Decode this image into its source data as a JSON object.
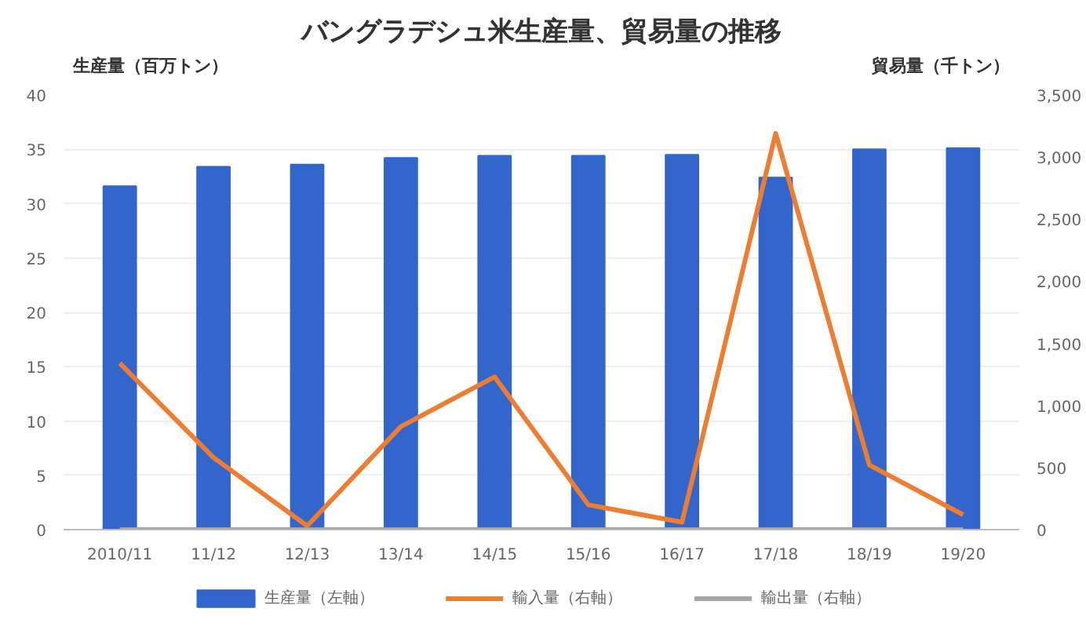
{
  "chart_data": {
    "type": "bar",
    "title": "バングラデシュ米生産量、貿易量の推移",
    "ylabel": "生産量（百万トン）",
    "y2label": "貿易量（千トン）",
    "categories": [
      "2010/11",
      "11/12",
      "12/13",
      "13/14",
      "14/15",
      "15/16",
      "16/17",
      "17/18",
      "18/19",
      "19/20"
    ],
    "series": [
      {
        "name": "生産量（左軸）",
        "color": "#3366cc",
        "values": [
          31.6,
          33.4,
          33.6,
          34.2,
          34.4,
          34.4,
          34.5,
          32.4,
          35.0,
          35.1
        ]
      },
      {
        "name": "輸入量（右軸）",
        "type": "line",
        "axis": "y2",
        "color": "#ed7d31",
        "values": [
          1340,
          580,
          30,
          830,
          1230,
          200,
          60,
          3190,
          520,
          120
        ]
      },
      {
        "name": "輸出量（右軸）",
        "type": "line",
        "axis": "y2",
        "color": "#a5a5a5",
        "values": [
          0,
          0,
          0,
          0,
          0,
          0,
          0,
          0,
          0,
          0
        ]
      }
    ],
    "ylim": [
      0,
      40
    ],
    "yticks": [
      0,
      5,
      10,
      15,
      20,
      25,
      30,
      35,
      40
    ],
    "y2lim": [
      0,
      3500
    ],
    "y2ticks": [
      0,
      {
        "value": 500,
        "label": "500"
      },
      {
        "value": 1000,
        "label": "1,000"
      },
      {
        "value": 1500,
        "label": "1,500"
      },
      {
        "value": 2000,
        "label": "2,000"
      },
      {
        "value": 2500,
        "label": "2,500"
      },
      {
        "value": 3000,
        "label": "3,000"
      },
      {
        "value": 3500,
        "label": "3,500"
      }
    ],
    "grid": "y",
    "legend": "bottom"
  }
}
